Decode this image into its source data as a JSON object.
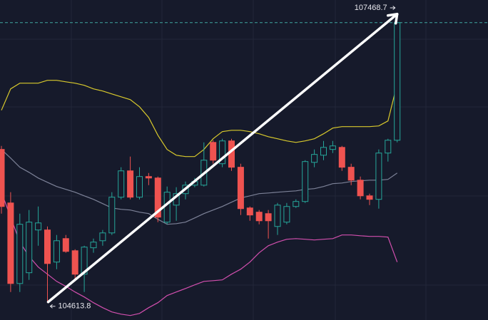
{
  "chart_data": {
    "type": "candlestick",
    "ylim": [
      104430,
      107700
    ],
    "up_color": "#26a69a",
    "down_color": "#ef5350",
    "grid": true,
    "open": [
      106173,
      105626,
      104803,
      104913,
      105350,
      105350,
      105022,
      105262,
      105138,
      104898,
      105168,
      105240,
      105320,
      105685,
      105954,
      105685,
      105896,
      105881,
      105430,
      105604,
      105721,
      105808,
      105808,
      106245,
      106027,
      106260,
      105991,
      105575,
      105532,
      105517,
      105386,
      105430,
      105590,
      105641,
      106041,
      106114,
      106173,
      106194,
      105991,
      105859,
      105699,
      105663,
      106136,
      106267
    ],
    "high": [
      106209,
      105736,
      105517,
      105554,
      105590,
      105386,
      105299,
      105299,
      105153,
      105189,
      105262,
      105350,
      105736,
      105991,
      106100,
      105991,
      105932,
      105896,
      105794,
      105787,
      105845,
      105881,
      106245,
      106267,
      106282,
      106282,
      106027,
      105590,
      105554,
      105554,
      105626,
      105626,
      105663,
      106063,
      106173,
      106260,
      106260,
      106209,
      106027,
      105896,
      105721,
      106173,
      106282,
      107468.7
    ],
    "low": [
      105517,
      104716,
      104716,
      104840,
      105189,
      104613.8,
      104949,
      105117,
      104825,
      104716,
      105117,
      105189,
      105299,
      105663,
      105663,
      105663,
      105808,
      105430,
      105408,
      105444,
      105663,
      105787,
      105794,
      106027,
      105991,
      105954,
      105503,
      105444,
      105408,
      105262,
      105299,
      105408,
      105575,
      105626,
      105991,
      106063,
      106136,
      105954,
      105808,
      105663,
      105604,
      105568,
      106049,
      106245
    ],
    "close": [
      105590,
      104803,
      105408,
      105430,
      105422,
      105007,
      105240,
      105131,
      104898,
      105175,
      105226,
      105320,
      105685,
      105954,
      105685,
      105896,
      105881,
      105481,
      105736,
      105721,
      105808,
      105845,
      106063,
      106063,
      106260,
      105991,
      105568,
      105503,
      105444,
      105444,
      105604,
      105590,
      105641,
      106049,
      106122,
      106194,
      106209,
      105991,
      105859,
      105699,
      105663,
      106136,
      106267,
      107468.7
    ],
    "bands": [
      {
        "color": "#d8c92c",
        "values": [
          106573,
          106792,
          106850,
          106850,
          106850,
          106879,
          106879,
          106864,
          106850,
          106828,
          106792,
          106770,
          106740,
          106711,
          106682,
          106609,
          106500,
          106318,
          106173,
          106114,
          106100,
          106100,
          106173,
          106282,
          106355,
          106369,
          106369,
          106355,
          106333,
          106303,
          106282,
          106260,
          106245,
          106260,
          106282,
          106333,
          106391,
          106406,
          106406,
          106406,
          106406,
          106413,
          106464,
          106843
        ]
      },
      {
        "color": "#7d8298",
        "values": [
          106173,
          106085,
          105991,
          105939,
          105881,
          105837,
          105794,
          105765,
          105736,
          105699,
          105663,
          105619,
          105575,
          105561,
          105554,
          105532,
          105517,
          105459,
          105408,
          105415,
          105430,
          105473,
          105517,
          105554,
          105590,
          105634,
          105677,
          105699,
          105721,
          105728,
          105736,
          105743,
          105750,
          105765,
          105772,
          105794,
          105823,
          105830,
          105845,
          105852,
          105859,
          105859,
          105867,
          105932
        ]
      },
      {
        "color": "#d24fae",
        "values": [
          105736,
          105481,
          105226,
          105080,
          104971,
          104898,
          104825,
          104774,
          104716,
          104665,
          104607,
          104556,
          104512,
          104490,
          104476,
          104497,
          104556,
          104607,
          104680,
          104716,
          104752,
          104789,
          104825,
          104832,
          104840,
          104898,
          104949,
          105022,
          105117,
          105189,
          105226,
          105255,
          105262,
          105255,
          105248,
          105255,
          105262,
          105299,
          105299,
          105291,
          105284,
          105284,
          105277,
          105022
        ]
      }
    ],
    "annotations": [
      107468.7,
      104613.8
    ]
  }
}
